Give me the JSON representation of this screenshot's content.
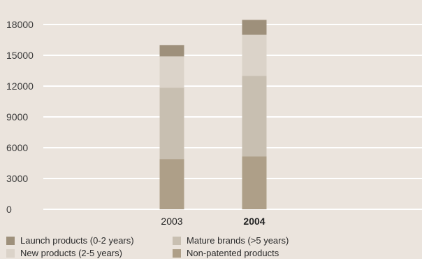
{
  "chart_data": {
    "type": "bar",
    "stacked": true,
    "categories": [
      "2003",
      "2004"
    ],
    "highlight_category": "2004",
    "y_ticks": [
      0,
      3000,
      6000,
      9000,
      12000,
      15000,
      18000
    ],
    "ylim": [
      0,
      18000
    ],
    "grid": true,
    "legend_position": "bottom",
    "series": [
      {
        "name": "Non-patented products",
        "values": [
          4900,
          5150
        ],
        "color": "#ae9f88"
      },
      {
        "name": "Mature brands (>5 years)",
        "values": [
          6950,
          7850
        ],
        "color": "#c8bfb1"
      },
      {
        "name": "New products (2-5 years)",
        "values": [
          3050,
          4000
        ],
        "color": "#dbd3c9"
      },
      {
        "name": "Launch products (0-2 years)",
        "values": [
          1100,
          1450
        ],
        "color": "#9e907b"
      }
    ],
    "legend_order": [
      "Launch products (0-2 years)",
      "Mature brands (>5 years)",
      "New products (2-5 years)",
      "Non-patented products"
    ]
  }
}
